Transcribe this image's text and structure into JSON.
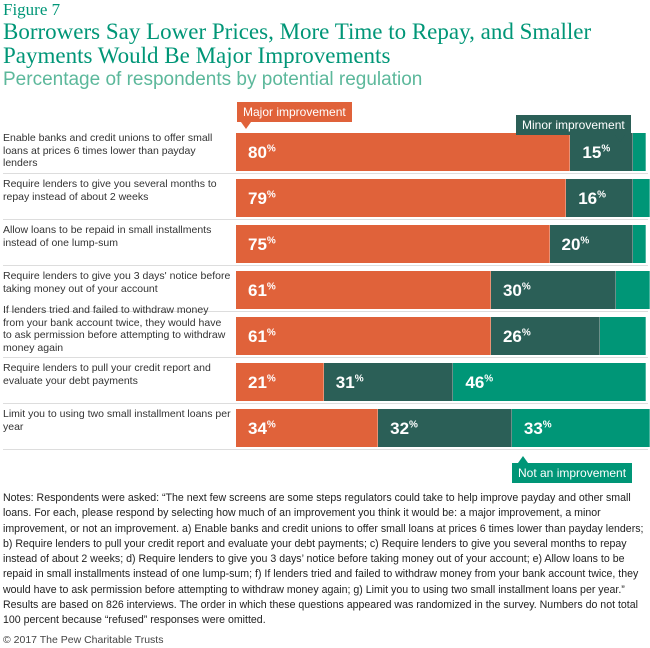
{
  "figure_label": "Figure 7",
  "chart_data": {
    "type": "bar",
    "orientation": "horizontal-stacked",
    "title": "Borrowers Say Lower Prices, More Time to Repay, and Smaller Payments Would Be Major Improvements",
    "subtitle": "Percentage of respondents by potential regulation",
    "categories": [
      "Enable banks and credit unions to offer small loans at prices 6 times lower than payday lenders",
      "Require lenders to give you several months to repay instead of about 2 weeks",
      "Allow loans to be repaid in small installments instead of one lump-sum",
      "Require lenders to give you 3 days' notice before taking money out of your account",
      "If lenders tried and failed to withdraw money from your bank account twice, they would have to ask permission before attempting to withdraw money again",
      "Require lenders to pull your credit report and evaluate your debt payments",
      "Limit you to using two small installment loans per year"
    ],
    "series": [
      {
        "name": "Major improvement",
        "color": "#E0623A",
        "values": [
          80,
          79,
          75,
          61,
          61,
          21,
          34
        ],
        "labels": [
          "80",
          "79",
          "75",
          "61",
          "61",
          "21",
          "34"
        ]
      },
      {
        "name": "Minor improvement",
        "color": "#2B5F57",
        "values": [
          15,
          16,
          20,
          30,
          26,
          31,
          32
        ],
        "labels": [
          "15",
          "16",
          "20",
          "30",
          "26",
          "31",
          "32"
        ]
      },
      {
        "name": "Not an improvement",
        "color": "#009677",
        "values": [
          3,
          4,
          3,
          8,
          11,
          46,
          33
        ],
        "labels": [
          "",
          "",
          "",
          "",
          "",
          "46",
          "33"
        ]
      }
    ],
    "xlim": [
      0,
      100
    ],
    "grid": false
  },
  "notes": "Notes: Respondents were asked: “The next few screens are some steps regulators could take to help improve payday and other small loans. For each, please respond by selecting how much of an improvement you think it would be: a major improvement, a minor improvement, or not an improvement. a) Enable banks and credit unions to offer small loans at prices 6 times lower than payday lenders; b) Require lenders to pull your credit report and evaluate your debt payments; c) Require lenders to give you several months to repay instead of about 2 weeks; d) Require lenders to give you 3 days’ notice before taking money out of your account; e) Allow loans to be repaid in small installments instead of one lump-sum; f) If lenders tried and failed to withdraw money from your bank account twice, they would have to ask permission before attempting to withdraw money again; g) Limit you to using two small installment loans per year.” Results are based on 826 interviews. The order in which these questions appeared was randomized in the survey. Numbers do not total 100 percent because “refused” responses were omitted.",
  "copyright": "© 2017 The Pew Charitable Trusts"
}
